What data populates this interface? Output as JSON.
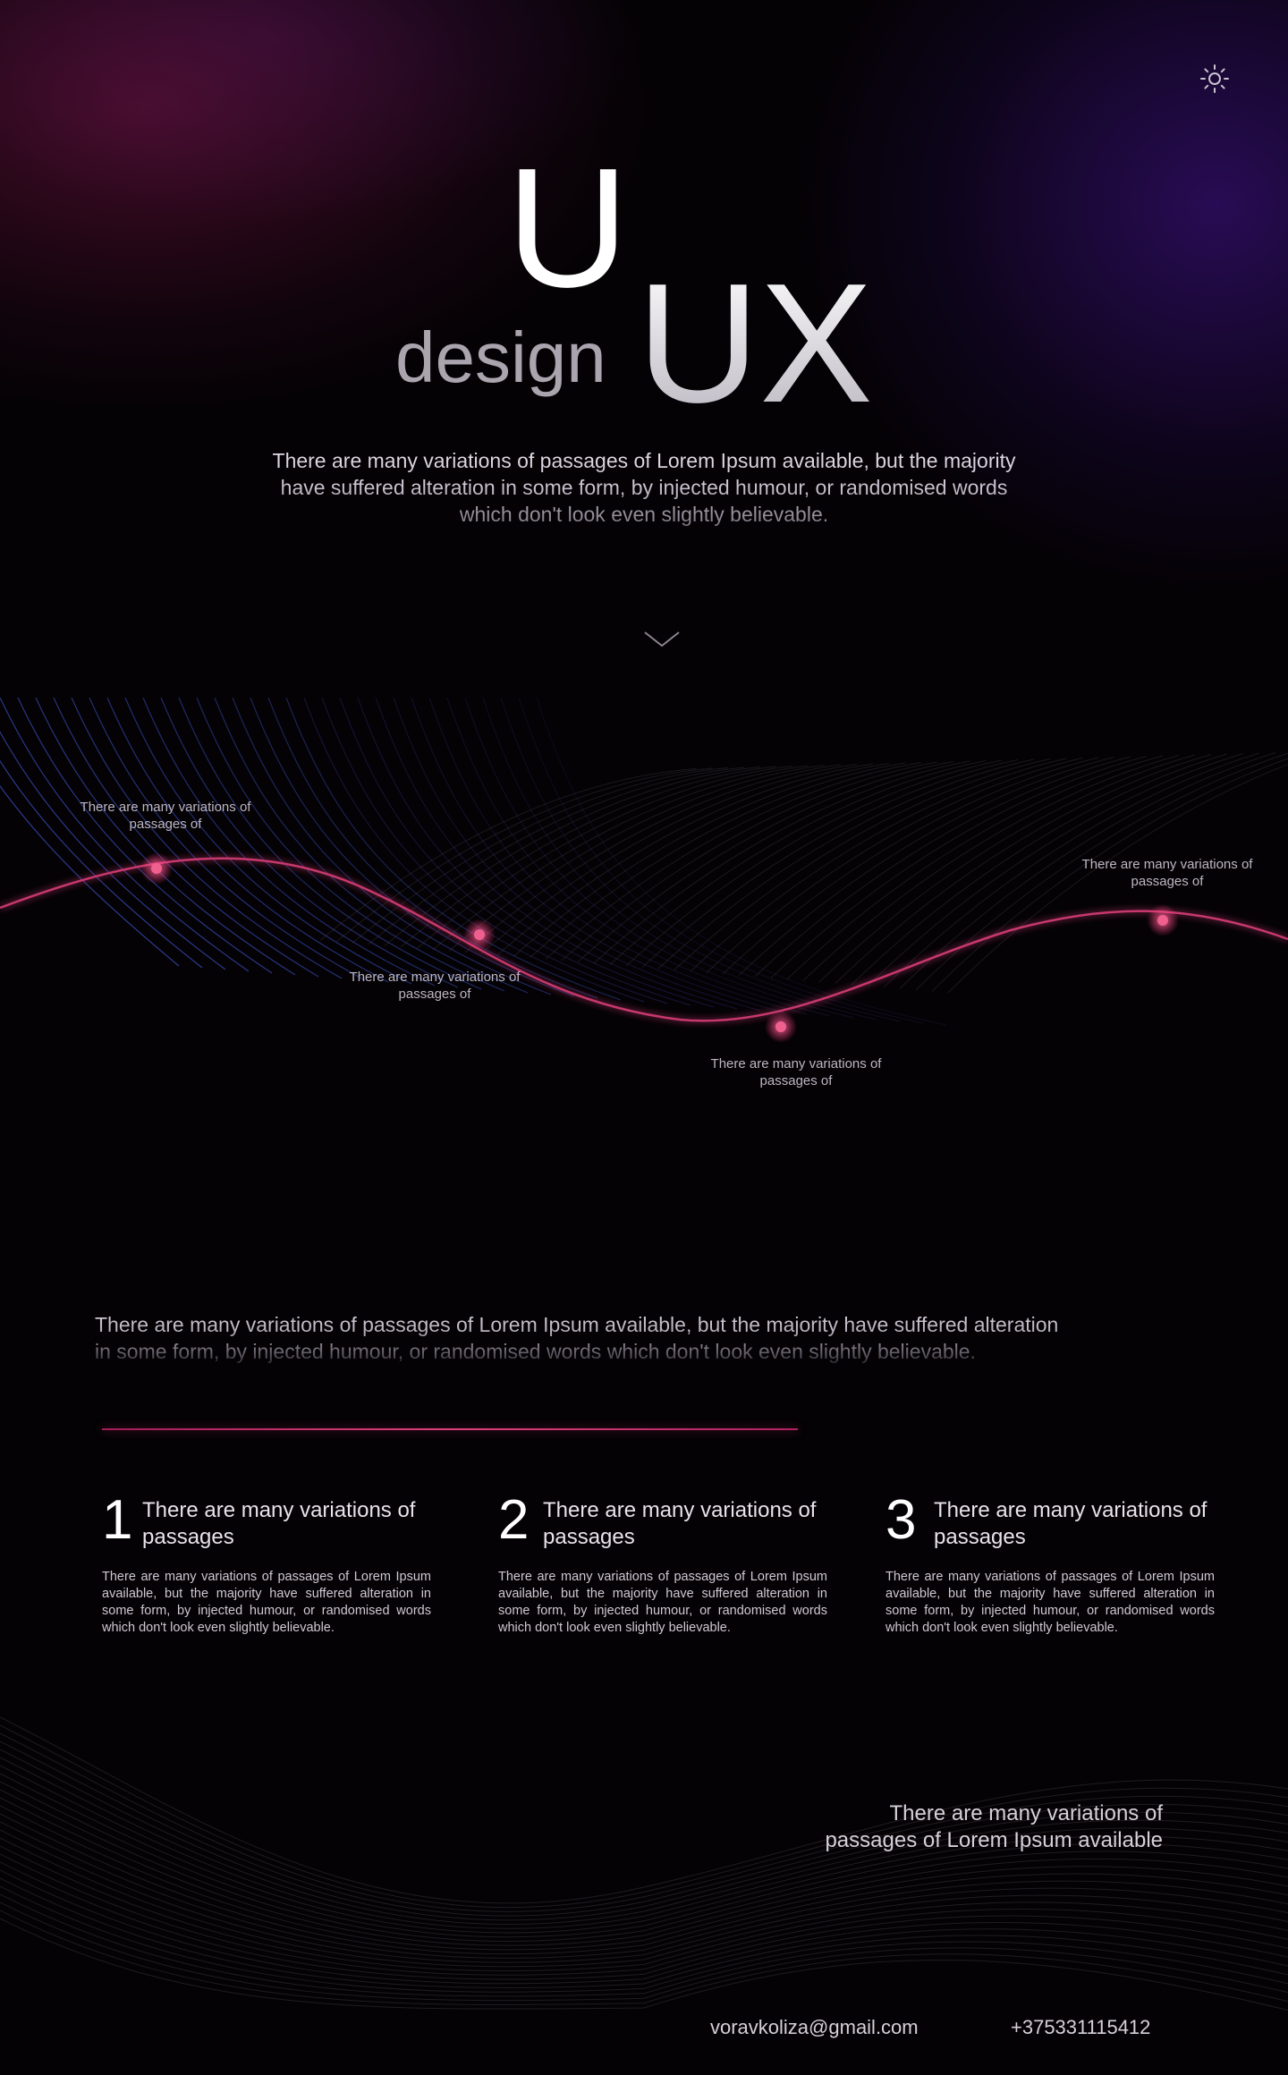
{
  "hero": {
    "logo_letters_top": "U",
    "logo_letters_bottom": "UX",
    "logo_word": "design",
    "description": "There are many variations of passages of Lorem Ipsum available, but the majority have suffered alteration in some form, by injected humour, or randomised words which don't look even slightly believable."
  },
  "icons": {
    "settings": "gear-icon",
    "scroll_down": "chevron-down-icon"
  },
  "wave_labels": [
    "There are many variations of passages of",
    "There are many variations of passages of",
    "There are many variations of passages of",
    "There are many variations of passages of"
  ],
  "intro": "There are many variations of passages of Lorem Ipsum available, but the majority have suffered alteration in some form, by injected humour, or randomised words which don't look even slightly believable.",
  "features": [
    {
      "number": "1",
      "title": "There are many variations of passages",
      "body": "There are many variations of passages of Lorem Ipsum available, but the majority have suffered alteration in some form, by injected humour, or randomised words which don't look even slightly believable."
    },
    {
      "number": "2",
      "title": "There are many variations of passages",
      "body": "There are many variations of passages of Lorem Ipsum available, but the majority have suffered alteration in some form, by injected humour, or randomised words which don't look even slightly believable."
    },
    {
      "number": "3",
      "title": "There are many variations of passages",
      "body": "There are many variations of passages of Lorem Ipsum available, but the majority have suffered alteration in some form, by injected humour, or randomised words which don't look even slightly believable."
    }
  ],
  "footer": {
    "tagline": "There are many variations of passages of Lorem Ipsum available",
    "email": "voravkoliza@gmail.com",
    "phone": "+375331115412"
  },
  "colors": {
    "background": "#040204",
    "accent_pink": "#e0407a",
    "accent_blue": "#3c4fb8"
  }
}
